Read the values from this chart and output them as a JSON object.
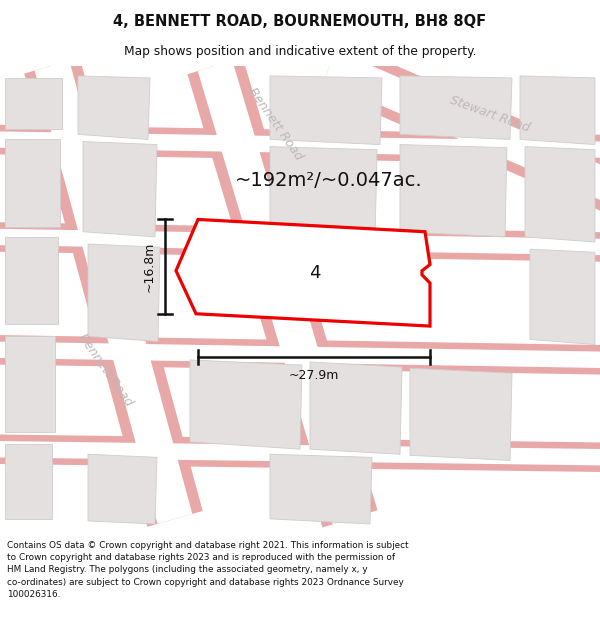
{
  "title": "4, BENNETT ROAD, BOURNEMOUTH, BH8 8QF",
  "subtitle": "Map shows position and indicative extent of the property.",
  "area_text": "~192m²/~0.047ac.",
  "width_label": "~27.9m",
  "height_label": "~16.8m",
  "plot_label": "4",
  "footer": "Contains OS data © Crown copyright and database right 2021. This information is subject to Crown copyright and database rights 2023 and is reproduced with the permission of HM Land Registry. The polygons (including the associated geometry, namely x, y co-ordinates) are subject to Crown copyright and database rights 2023 Ordnance Survey 100026316.",
  "map_bg": "#f2f0f0",
  "road_fill": "#ffffff",
  "road_border": "#e8a8a8",
  "bld_fill": "#e4e0e0",
  "bld_edge": "#d0cccc",
  "plot_fill": "#ffffff",
  "plot_edge": "#ee0000",
  "plot_lw": 2.3,
  "road_lbl": "#c0b8b8",
  "title_fs": 10.5,
  "subtitle_fs": 8.8,
  "area_fs": 14,
  "dim_fs": 9,
  "plot_num_fs": 13,
  "footer_fs": 6.4
}
